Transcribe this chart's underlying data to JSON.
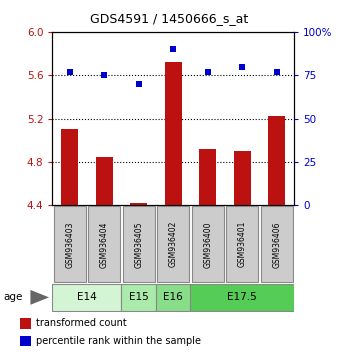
{
  "title": "GDS4591 / 1450666_s_at",
  "samples": [
    "GSM936403",
    "GSM936404",
    "GSM936405",
    "GSM936402",
    "GSM936400",
    "GSM936401",
    "GSM936406"
  ],
  "bar_values": [
    5.1,
    4.85,
    4.42,
    5.72,
    4.92,
    4.9,
    5.22
  ],
  "bar_base": 4.4,
  "percentile_values": [
    77,
    75,
    70,
    90,
    77,
    80,
    77
  ],
  "bar_color": "#bb1111",
  "dot_color": "#0000cc",
  "ylim_left": [
    4.4,
    6.0
  ],
  "ylim_right": [
    0,
    100
  ],
  "yticks_left": [
    4.4,
    4.8,
    5.2,
    5.6,
    6.0
  ],
  "yticks_right": [
    0,
    25,
    50,
    75,
    100
  ],
  "ytick_labels_right": [
    "0",
    "25",
    "50",
    "75",
    "100%"
  ],
  "dotted_lines": [
    4.8,
    5.2,
    5.6,
    6.0
  ],
  "age_groups": [
    {
      "label": "E14",
      "start": 0,
      "end": 2,
      "color": "#d4f5d4"
    },
    {
      "label": "E15",
      "start": 2,
      "end": 3,
      "color": "#aaeaaa"
    },
    {
      "label": "E16",
      "start": 3,
      "end": 4,
      "color": "#88dd88"
    },
    {
      "label": "E17.5",
      "start": 4,
      "end": 7,
      "color": "#55cc55"
    }
  ],
  "age_label": "age",
  "legend_bar_label": "transformed count",
  "legend_dot_label": "percentile rank within the sample",
  "bar_width": 0.5,
  "sample_box_color": "#cccccc",
  "sample_box_edge": "#888888"
}
